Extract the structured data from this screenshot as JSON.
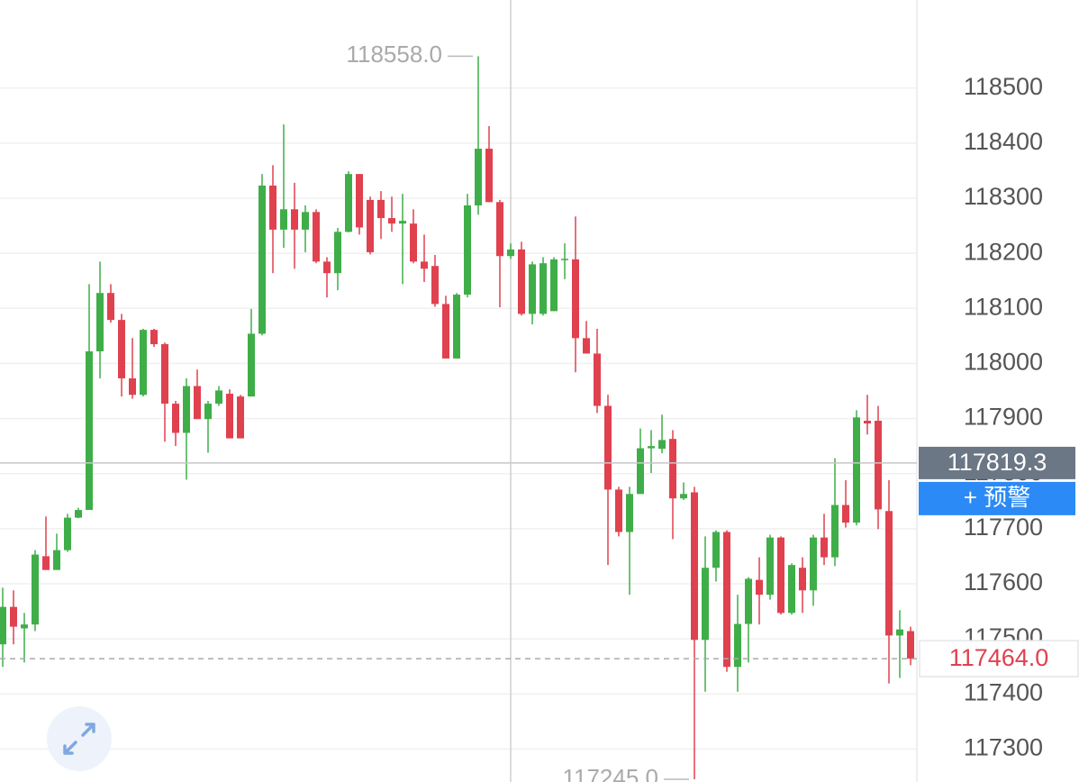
{
  "chart_data": {
    "type": "candlestick",
    "up_color": "#3fae49",
    "down_color": "#e0414f",
    "ylim": [
      117240,
      118660
    ],
    "yticks": [
      117300,
      117400,
      117500,
      117600,
      117700,
      117800,
      117900,
      118000,
      118100,
      118200,
      118300,
      118400,
      118500
    ],
    "grid": true,
    "open": [
      117490,
      117558,
      117519,
      117526,
      117650,
      117625,
      117661,
      117720,
      117734,
      118022,
      118128,
      118079,
      117973,
      117943,
      118061,
      118035,
      117927,
      117874,
      117959,
      117899,
      117927,
      117945,
      117940,
      117940,
      118054,
      118323,
      118243,
      118280,
      118243,
      118275,
      118185,
      118164,
      118239,
      118344,
      118297,
      118297,
      118264,
      118254,
      118254,
      118185,
      118177,
      118108,
      118009,
      118125,
      118287,
      118390,
      118293,
      118195,
      118207,
      118090,
      118090,
      118095,
      118189,
      118189,
      118046,
      118018,
      117923,
      117771,
      117694,
      117763,
      117846,
      117845,
      117863,
      117755,
      117766,
      117498,
      117629,
      117694,
      117449,
      117527,
      117607,
      117580,
      117684,
      117547,
      117629,
      117588,
      117684,
      117648,
      117743,
      117711,
      117896,
      117896,
      117732,
      117506,
      117514
    ],
    "high": [
      117593,
      117588,
      117547,
      117661,
      117722,
      117691,
      117727,
      117738,
      118144,
      118185,
      118144,
      118090,
      118046,
      118063,
      118063,
      118038,
      117932,
      117973,
      117989,
      117932,
      117959,
      117953,
      117943,
      118099,
      118344,
      118360,
      118434,
      118328,
      118287,
      118280,
      118193,
      118246,
      118349,
      118344,
      118303,
      118313,
      118303,
      118308,
      118280,
      118234,
      118197,
      118123,
      118128,
      118308,
      118558,
      118431,
      118297,
      118218,
      118221,
      118185,
      118193,
      118193,
      118218,
      118267,
      118077,
      118063,
      117943,
      117776,
      117776,
      117882,
      117879,
      117907,
      117879,
      117784,
      117776,
      117686,
      117697,
      117697,
      117580,
      117612,
      117648,
      117689,
      117686,
      117637,
      117648,
      117689,
      117727,
      117828,
      117788,
      117915,
      117943,
      117923,
      117788,
      117552,
      117522
    ],
    "low": [
      117449,
      117490,
      117457,
      117514,
      117625,
      117625,
      117658,
      117719,
      117734,
      117973,
      118074,
      117940,
      117936,
      117940,
      118030,
      117858,
      117850,
      117789,
      117899,
      117838,
      117923,
      117864,
      117864,
      117940,
      118051,
      118164,
      118210,
      118172,
      118202,
      118182,
      118120,
      118133,
      118238,
      118234,
      118198,
      118226,
      118239,
      118144,
      118182,
      118148,
      118103,
      118009,
      118009,
      118120,
      118270,
      118293,
      118102,
      118190,
      118087,
      118071,
      118087,
      118095,
      118153,
      117984,
      118018,
      117910,
      117634,
      117686,
      117580,
      117763,
      117801,
      117837,
      117681,
      117752,
      117245,
      117404,
      117604,
      117440,
      117404,
      117457,
      117526,
      117571,
      117544,
      117544,
      117547,
      117560,
      117634,
      117632,
      117702,
      117706,
      117871,
      117699,
      117419,
      117429,
      117452
    ],
    "close": [
      117558,
      117522,
      117526,
      117653,
      117625,
      117661,
      117720,
      117734,
      118022,
      118128,
      118079,
      117973,
      117943,
      118061,
      118035,
      117927,
      117874,
      117959,
      117899,
      117927,
      117951,
      117864,
      117864,
      118054,
      118323,
      118243,
      118280,
      118243,
      118275,
      118185,
      118164,
      118239,
      118344,
      118247,
      118202,
      118264,
      118254,
      118259,
      118185,
      118172,
      118108,
      118009,
      118125,
      118287,
      118390,
      118293,
      118195,
      118207,
      118090,
      118180,
      118182,
      118189,
      118190,
      118046,
      118018,
      117923,
      117771,
      117694,
      117763,
      117846,
      117850,
      117861,
      117755,
      117763,
      117498,
      117629,
      117694,
      117449,
      117527,
      117609,
      117580,
      117684,
      117547,
      117634,
      117588,
      117684,
      117648,
      117743,
      117711,
      117902,
      117891,
      117735,
      117506,
      117517,
      117464
    ],
    "extremes": [
      {
        "value": 118558,
        "label": "118558.0"
      },
      {
        "value": 117245,
        "label": "117245.0"
      }
    ],
    "crosshair": {
      "value": 117819.3,
      "label": "117819.3"
    },
    "last_price": {
      "value": 117464,
      "label": "117464.0"
    }
  },
  "alert_button": "+ 预警"
}
